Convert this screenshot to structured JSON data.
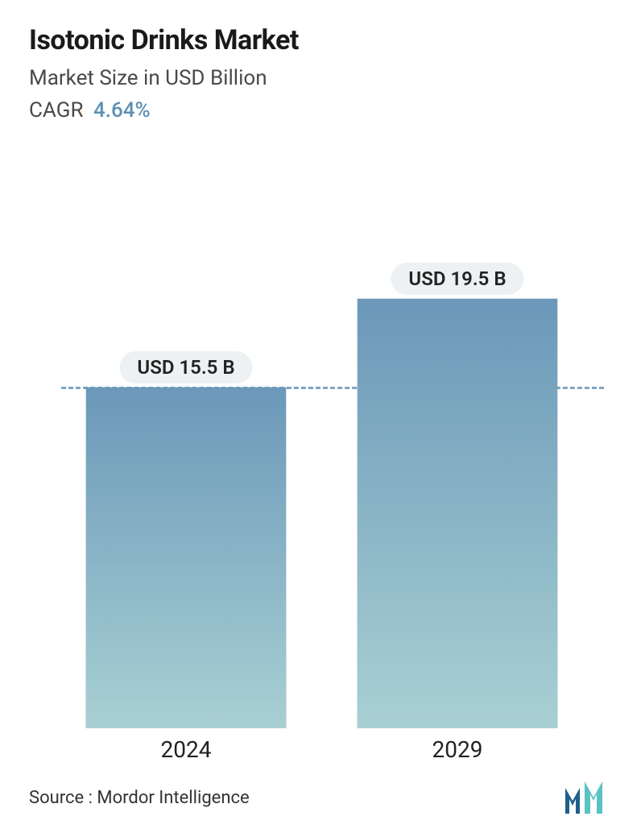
{
  "header": {
    "title": "Isotonic Drinks Market",
    "subtitle": "Market Size in USD Billion",
    "cagr_label": "CAGR",
    "cagr_value": "4.64%",
    "cagr_value_color": "#5f91b6",
    "title_color": "#1a1a1a",
    "title_fontsize": 34,
    "subtitle_color": "#4a4a4a",
    "subtitle_fontsize": 26
  },
  "chart": {
    "type": "bar",
    "categories": [
      "2024",
      "2029"
    ],
    "values": [
      15.5,
      19.5
    ],
    "value_labels": [
      "USD 15.5 B",
      "USD 19.5 B"
    ],
    "ylim": [
      0,
      26
    ],
    "bar_width_pct": 37,
    "bar_positions_pct": [
      23,
      73
    ],
    "bar_gradient_top": "#6b98b9",
    "bar_gradient_bottom": "#a8d0d3",
    "bar_border_color": "rgba(90,130,160,0.25)",
    "dashed_line_value": 15.5,
    "dashed_line_color": "#7fa6c2",
    "value_label_bg": "#eef1f3",
    "value_label_color": "#222222",
    "value_label_fontsize": 24,
    "axis_label_fontsize": 28,
    "axis_label_color": "#222222",
    "background_color": "#ffffff"
  },
  "footer": {
    "source_text": "Source :  Mordor Intelligence",
    "source_color": "#333333",
    "source_fontsize": 22,
    "logo_color_primary": "#1f5f8b",
    "logo_color_accent": "#5ac2c4"
  }
}
